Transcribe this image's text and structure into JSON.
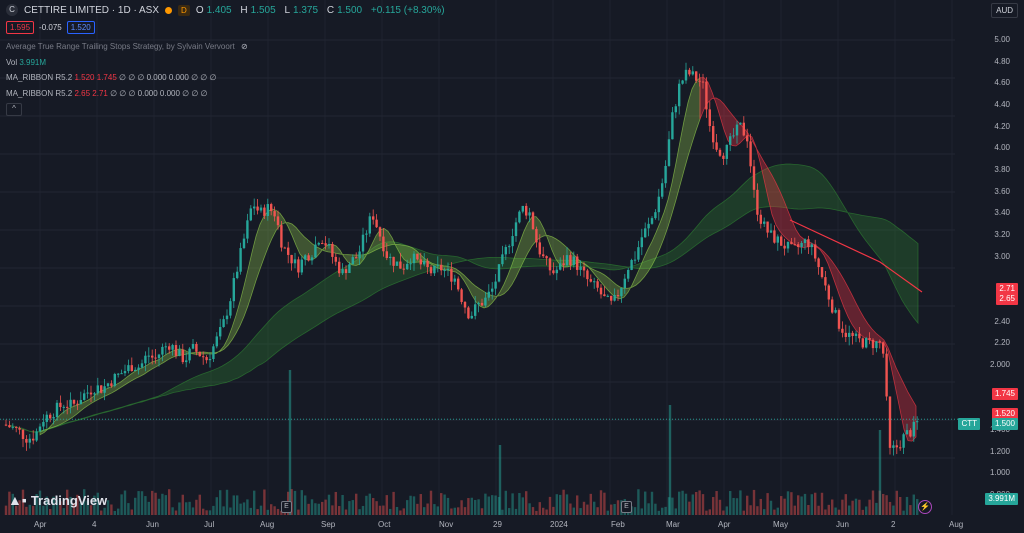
{
  "header": {
    "symbol_icon": "C",
    "title": "CETTIRE LIMITED · 1D · ASX",
    "badge": "D",
    "ohlc": [
      {
        "k": "O",
        "v": "1.405"
      },
      {
        "k": "H",
        "v": "1.505"
      },
      {
        "k": "L",
        "v": "1.375"
      },
      {
        "k": "C",
        "v": "1.500"
      },
      {
        "k": "",
        "v": "+0.115 (+8.30%)"
      }
    ],
    "sell": "1.595",
    "spread": "-0.075",
    "buy": "1.520"
  },
  "indicators": {
    "atr": "Average True Range Trailing Stops Strategy, by Sylvain Vervoort",
    "vol_label": "Vol",
    "vol_value": "3.991M",
    "ribbon1_name": "MA_RIBBON R5.2",
    "ribbon1_v1": "1.520",
    "ribbon1_v2": "1.745",
    "ribbon1_rest": "∅ ∅ ∅ 0.000 0.000 ∅ ∅ ∅",
    "ribbon2_name": "MA_RIBBON R5.2",
    "ribbon2_v1": "2.65",
    "ribbon2_v2": "2.71",
    "ribbon2_rest": "∅ ∅ ∅ 0.000 0.000 ∅ ∅ ∅"
  },
  "currency": "AUD",
  "brand": "TradingView",
  "price_axis": [
    "5.00",
    "4.80",
    "4.60",
    "4.40",
    "4.20",
    "4.00",
    "3.80",
    "3.60",
    "3.40",
    "3.20",
    "3.00",
    "2.40",
    "2.20",
    "2.000",
    "1.400",
    "1.200",
    "1.000",
    "0.800"
  ],
  "price_tags": [
    {
      "text": "2.71",
      "color": "#f23645",
      "price": 2.71
    },
    {
      "text": "2.65",
      "color": "#f23645",
      "price": 2.62
    },
    {
      "text": "1.745",
      "color": "#f23645",
      "price": 1.745
    },
    {
      "text": "1.520",
      "color": "#f23645",
      "price": 1.56
    },
    {
      "text": "1.500",
      "color": "#26a69a",
      "price": 1.465
    },
    {
      "text": "3.991M",
      "color": "#26a69a",
      "price": 0.77
    }
  ],
  "ticker_tag": "CTT",
  "time_axis": [
    "Apr",
    "4",
    "Jun",
    "Jul",
    "Aug",
    "Sep",
    "Oct",
    "Nov",
    "29",
    "2024",
    "Feb",
    "Mar",
    "Apr",
    "May",
    "Jun",
    "2",
    "Aug"
  ],
  "event_marker": "E",
  "colors": {
    "up": "#26a69a",
    "down": "#ef5350",
    "ribbon_green": "#4caf50",
    "ribbon_red": "#f23645",
    "bg": "#161a25"
  },
  "chart_data": {
    "type": "candlestick",
    "ylim": [
      0.8,
      5.0
    ],
    "close_path": [
      1.45,
      1.42,
      1.38,
      1.32,
      1.35,
      1.5,
      1.55,
      1.6,
      1.65,
      1.62,
      1.7,
      1.75,
      1.8,
      1.78,
      1.85,
      1.9,
      1.95,
      2.0,
      1.98,
      2.1,
      2.05,
      2.15,
      2.2,
      2.1,
      2.05,
      2.15,
      2.1,
      2.05,
      2.2,
      2.35,
      2.6,
      2.9,
      3.2,
      3.5,
      3.4,
      3.45,
      3.4,
      3.1,
      3.0,
      2.9,
      3.0,
      3.05,
      3.2,
      3.1,
      2.95,
      2.85,
      2.95,
      3.0,
      3.2,
      3.4,
      3.2,
      3.0,
      2.95,
      2.9,
      3.0,
      2.95,
      2.9,
      2.85,
      2.9,
      2.85,
      2.8,
      2.6,
      2.45,
      2.55,
      2.6,
      2.7,
      2.9,
      3.1,
      3.3,
      3.45,
      3.4,
      3.1,
      2.95,
      2.85,
      2.9,
      3.0,
      2.95,
      2.85,
      2.75,
      2.7,
      2.6,
      2.55,
      2.7,
      2.9,
      3.0,
      3.2,
      3.3,
      3.5,
      3.8,
      4.3,
      4.6,
      4.7,
      4.65,
      4.6,
      4.2,
      4.0,
      3.95,
      4.1,
      4.2,
      4.1,
      3.5,
      3.3,
      3.2,
      3.15,
      3.1,
      3.05,
      3.1,
      3.15,
      3.0,
      2.8,
      2.6,
      2.4,
      2.3,
      2.25,
      2.22,
      2.2,
      2.2,
      2.2,
      1.2,
      1.25,
      1.35,
      1.4,
      1.5
    ],
    "volume_spikes": [
      {
        "x": 290,
        "h": 145
      },
      {
        "x": 500,
        "h": 70
      },
      {
        "x": 670,
        "h": 110
      },
      {
        "x": 880,
        "h": 85
      }
    ]
  }
}
